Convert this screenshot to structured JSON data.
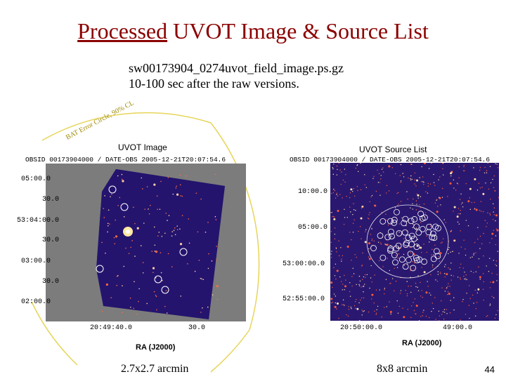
{
  "slide": {
    "title_part1": "Processed",
    "title_part2": "UVOT  Image  &  Source List",
    "subtitle_line1": "sw00173904_0274uvot_field_image.ps.gz",
    "subtitle_line2": "10-100 sec after the raw versions.",
    "slide_number": "44"
  },
  "left_panel": {
    "label": "UVOT Image",
    "header": "OBSID 00173904000 / DATE-OBS 2005-12-21T20:07:54.6",
    "arc_text": "BAT Error Circle, 90% CL",
    "y_ticks": [
      "05:00.0",
      "30.0",
      "53:04:00.0",
      "30.0",
      "03:00.0",
      "30.0",
      "02:00.0"
    ],
    "x_ticks": [
      "20:49:40.0",
      "30.0"
    ],
    "x_axis_label": "RA (J2000)",
    "caption": "2.7x2.7 arcmin"
  },
  "right_panel": {
    "label": "UVOT Source List",
    "header": "OBSID 00173904000 / DATE-OBS 2005-12-21T20:07:54.6",
    "y_ticks": [
      "10:00.0",
      "05:00.0",
      "53:00:00.0",
      "52:55:00.0"
    ],
    "x_ticks": [
      "20:50:00.0",
      "49:00.0"
    ],
    "x_axis_label": "RA (J2000)",
    "caption": "8x8 arcmin"
  },
  "colors": {
    "title": "#8b0000",
    "arc": "#e6d55a",
    "field": "#2a2480"
  }
}
